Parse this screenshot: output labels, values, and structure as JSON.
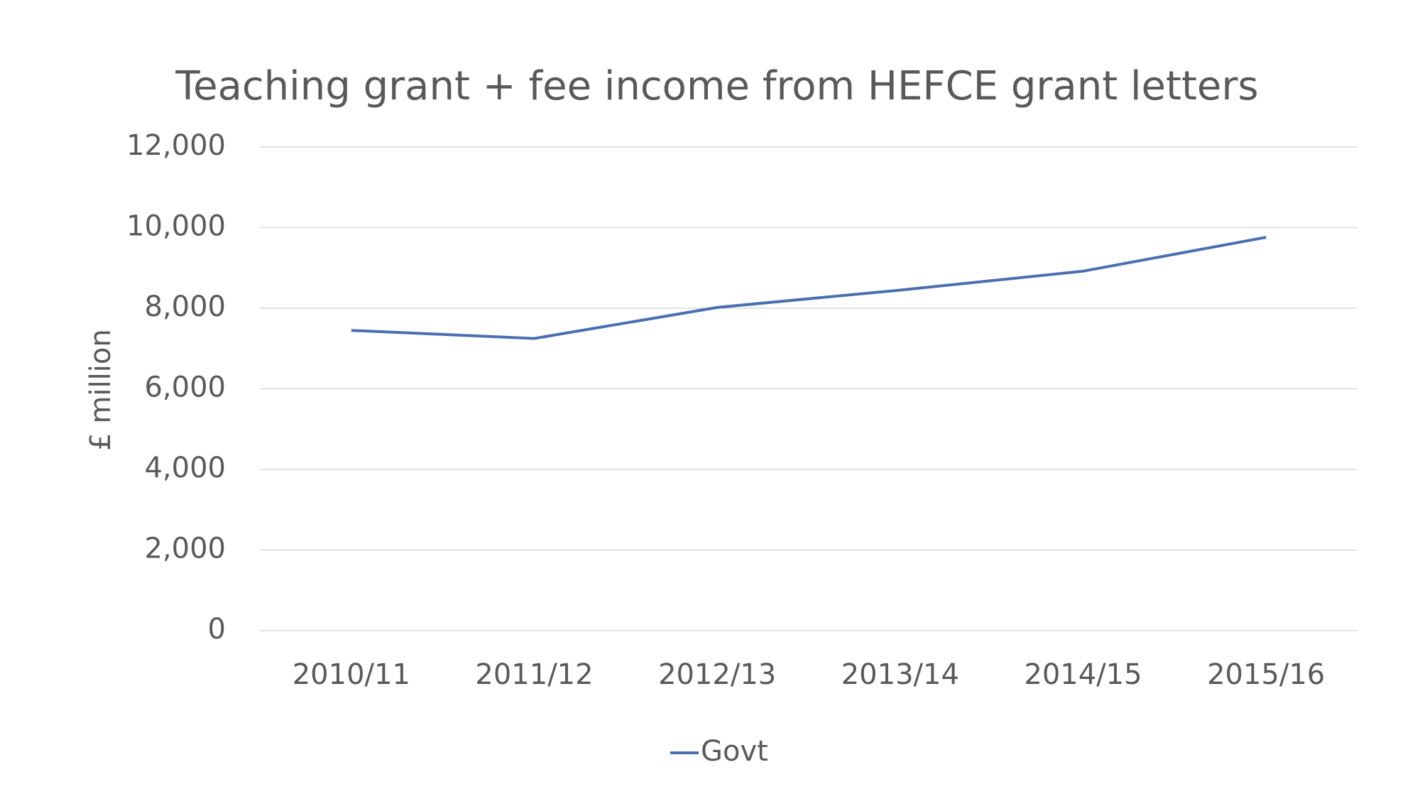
{
  "chart_data": {
    "type": "line",
    "title": "Teaching grant + fee income from HEFCE grant letters",
    "y_label": "£ million",
    "categories": [
      "2010/11",
      "2011/12",
      "2012/13",
      "2013/14",
      "2014/15",
      "2015/16"
    ],
    "series": [
      {
        "name": "Govt",
        "color": "#4a6fb0",
        "values": [
          7450,
          7250,
          8020,
          8450,
          8920,
          9760
        ]
      }
    ],
    "ylim": [
      0,
      12000
    ],
    "yticks": [
      0,
      {
        "value": 2000,
        "label": "2,000"
      },
      {
        "value": 4000,
        "label": "4,000"
      },
      {
        "value": 6000,
        "label": "6,000"
      },
      {
        "value": 8000,
        "label": "8,000"
      },
      {
        "value": 10000,
        "label": "10,000"
      },
      {
        "value": 12000,
        "label": "12,000"
      }
    ],
    "grid": true,
    "legend": "bottom"
  }
}
